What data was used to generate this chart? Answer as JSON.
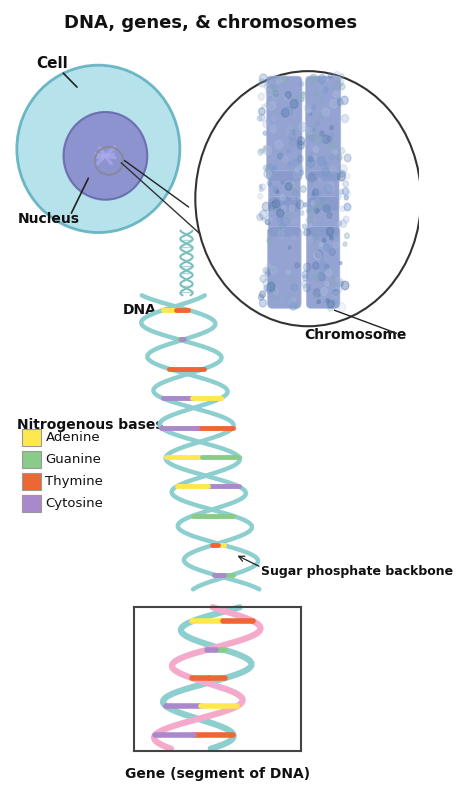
{
  "title": "DNA, genes, & chromosomes",
  "title_fontsize": 13,
  "title_fontweight": "bold",
  "background_color": "#ffffff",
  "labels": {
    "cell": "Cell",
    "nucleus": "Nucleus",
    "dna": "DNA",
    "chromosome": "Chromosome",
    "sugar_phosphate": "Sugar phosphate backbone",
    "gene": "Gene (segment of DNA)"
  },
  "legend_title": "Nitrogenous bases",
  "legend_items": [
    {
      "label": "Adenine",
      "color": "#FFE84D"
    },
    {
      "label": "Guanine",
      "color": "#88CC88"
    },
    {
      "label": "Thymine",
      "color": "#EE6633"
    },
    {
      "label": "Cytosine",
      "color": "#AA88CC"
    }
  ],
  "cell_fill": "#A8DDE8",
  "cell_edge": "#5AACBC",
  "nucleus_fill": "#8888CC",
  "nucleus_edge": "#6666AA",
  "nucleolus_fill": "#CCCCEE",
  "dna_backbone_color": "#8DCFCF",
  "dna_base_colors": [
    "#FFE84D",
    "#88CC88",
    "#EE6633",
    "#AA88CC",
    "#EE6633",
    "#FFE84D",
    "#AA88CC",
    "#88CC88"
  ],
  "chrom_fill": "#8899CC",
  "chrom_fill2": "#AABBDD",
  "chrom_edge": "#6677AA",
  "gene_color1": "#8DCFCF",
  "gene_color2": "#F5AACC",
  "bracket_color": "#444444",
  "arrow_color": "#222222",
  "label_fontsize": 10,
  "label_fontweight": "bold"
}
